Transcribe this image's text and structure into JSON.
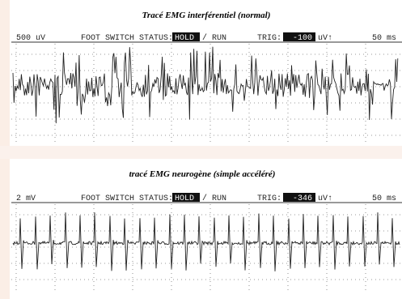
{
  "panels": [
    {
      "caption": "Tracé EMG interférentiel (normal)",
      "status": {
        "scale": "500 uV",
        "foot_switch": "FOOT SWITCH STATUS:",
        "hold": "HOLD",
        "run": "/ RUN",
        "trig": "TRIG:",
        "trig_value": "-100",
        "trig_unit": "uV↑",
        "time": "50 ms"
      }
    },
    {
      "caption": "tracé EMG neurogène (simple accéléré)",
      "status": {
        "scale": "2 mV",
        "foot_switch": "FOOT SWITCH STATUS:",
        "hold": "HOLD",
        "run": "/ RUN",
        "trig": "TRIG:",
        "trig_value": "-346",
        "trig_unit": "uV↑",
        "time": "50 ms"
      }
    }
  ]
}
